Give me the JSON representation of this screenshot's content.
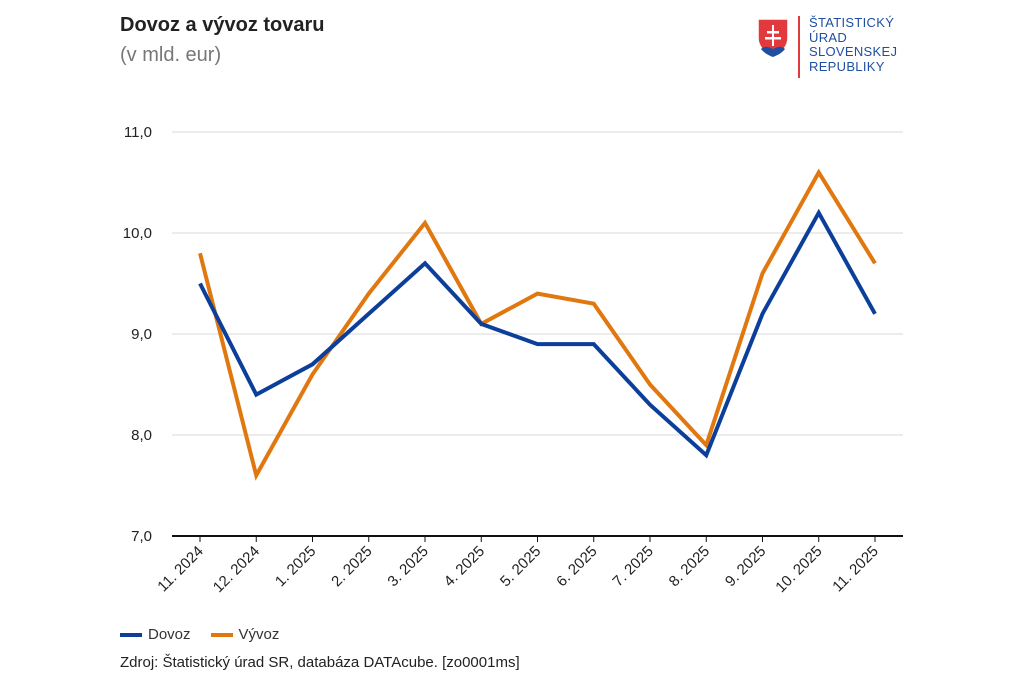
{
  "header": {
    "title": "Dovoz a vývoz tovaru",
    "subtitle": "(v mld. eur)"
  },
  "logo": {
    "lines": [
      "ŠTATISTICKÝ",
      "ÚRAD",
      "SLOVENSKEJ",
      "REPUBLIKY"
    ],
    "icon": "slovak-coat-of-arms-icon"
  },
  "source": "Zdroj: Štatistický úrad SR, databáza DATAcube. [zo0001ms]",
  "chart_data": {
    "type": "line",
    "title": "Dovoz a vývoz tovaru",
    "subtitle": "(v mld. eur)",
    "xlabel": "",
    "ylabel": "",
    "ylim": [
      7.0,
      11.0
    ],
    "yticks": [
      "7,0",
      "8,0",
      "9,0",
      "10,0",
      "11,0"
    ],
    "ytick_values": [
      7.0,
      8.0,
      9.0,
      10.0,
      11.0
    ],
    "grid": true,
    "legend_position": "bottom-left",
    "categories": [
      "11. 2024",
      "12. 2024",
      "1. 2025",
      "2. 2025",
      "3. 2025",
      "4. 2025",
      "5. 2025",
      "6. 2025",
      "7. 2025",
      "8. 2025",
      "9. 2025",
      "10. 2025",
      "11. 2025"
    ],
    "series": [
      {
        "name": "Dovoz",
        "color": "#0b3f9a",
        "values": [
          9.5,
          8.4,
          8.7,
          9.2,
          9.7,
          9.1,
          8.9,
          8.9,
          8.3,
          7.8,
          9.2,
          10.2,
          9.2
        ]
      },
      {
        "name": "Vývoz",
        "color": "#e0780f",
        "values": [
          9.8,
          7.6,
          8.6,
          9.4,
          10.1,
          9.1,
          9.4,
          9.3,
          8.5,
          7.9,
          9.6,
          10.6,
          9.7
        ]
      }
    ]
  }
}
